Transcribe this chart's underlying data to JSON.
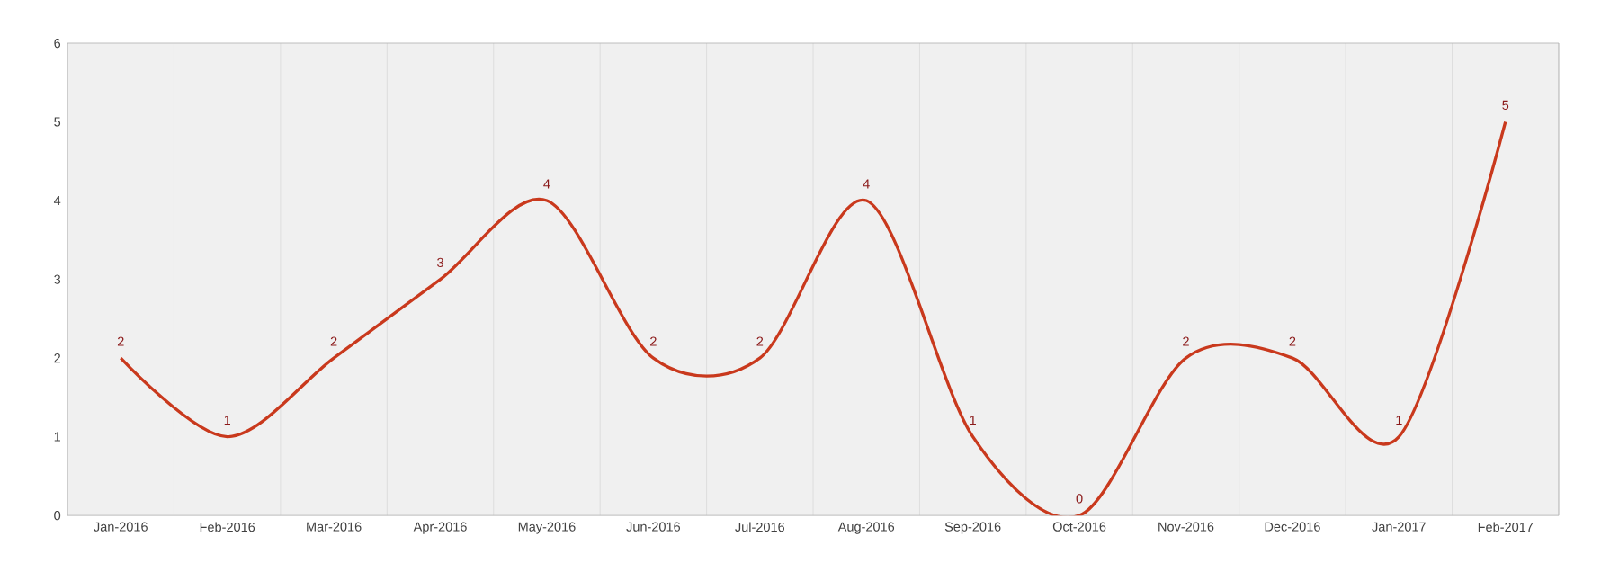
{
  "chart_data": {
    "type": "line",
    "categories": [
      "Jan-2016",
      "Feb-2016",
      "Mar-2016",
      "Apr-2016",
      "May-2016",
      "Jun-2016",
      "Jul-2016",
      "Aug-2016",
      "Sep-2016",
      "Oct-2016",
      "Nov-2016",
      "Dec-2016",
      "Jan-2017",
      "Feb-2017"
    ],
    "values": [
      2,
      1,
      2,
      3,
      4,
      2,
      2,
      4,
      1,
      0,
      2,
      2,
      1,
      5
    ],
    "color": "#c9391d",
    "ylim": [
      0,
      6
    ],
    "yticks": [
      0,
      1,
      2,
      3,
      4,
      5,
      6
    ],
    "grid": "x",
    "data_labels": true,
    "marker": "none",
    "line_style": "solid"
  }
}
